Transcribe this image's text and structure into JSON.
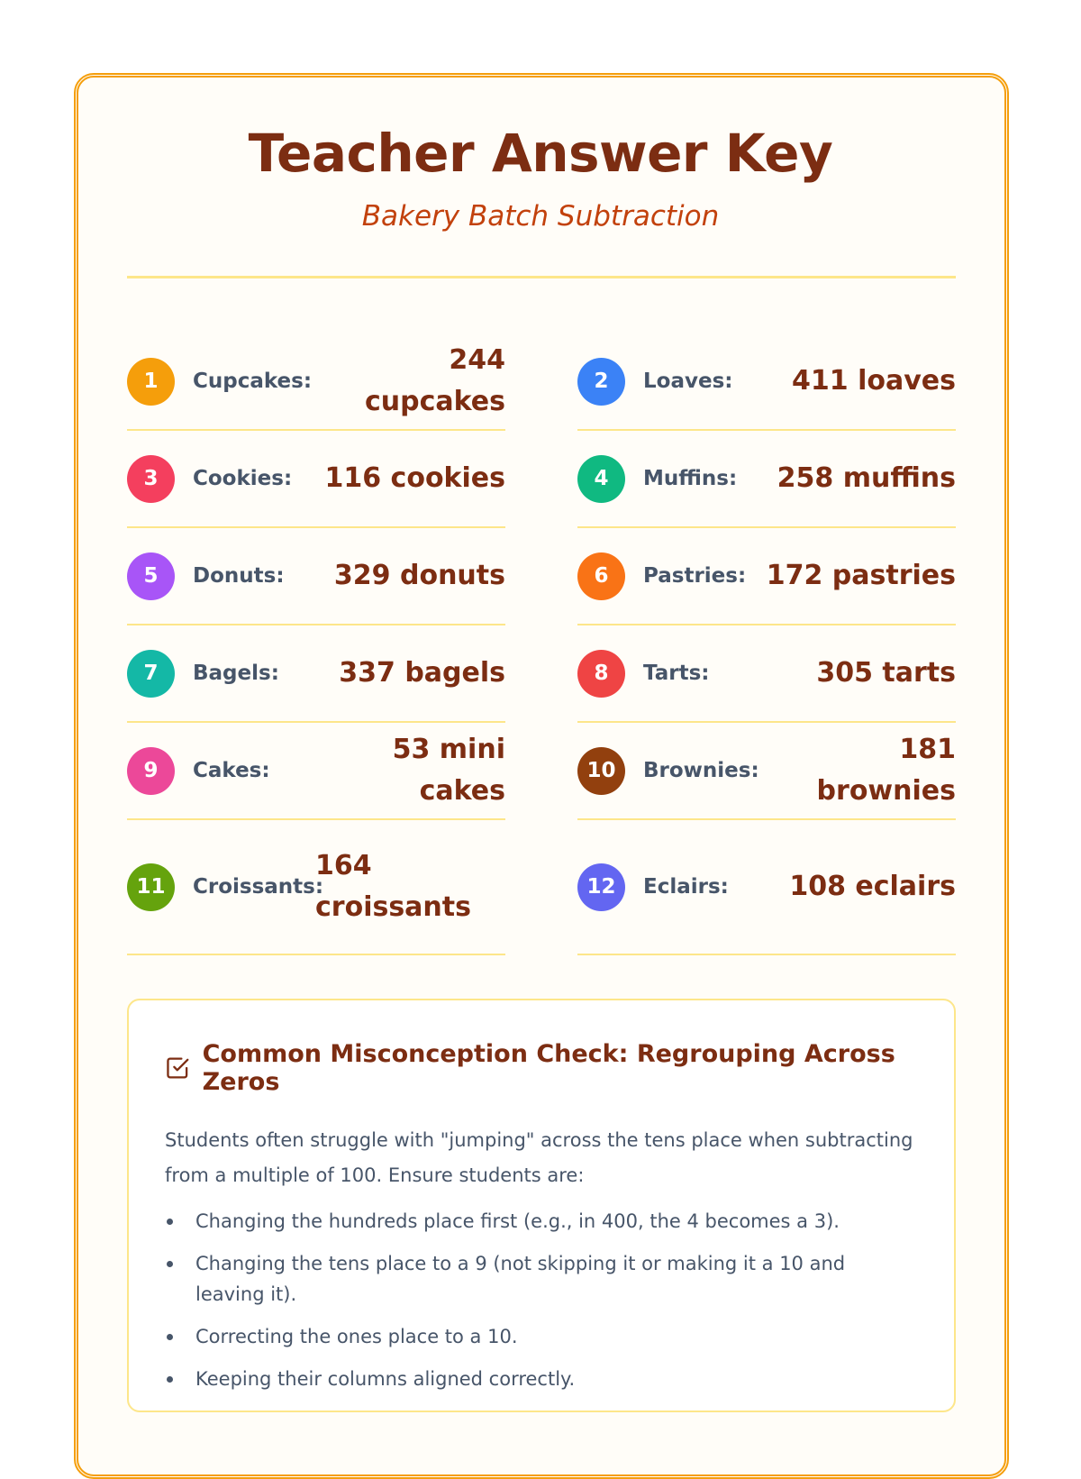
{
  "header": {
    "title": "Teacher Answer Key",
    "subtitle": "Bakery Batch Subtraction"
  },
  "answers": [
    {
      "n": "1",
      "label": "Cupcakes:",
      "answer": "244 cupcakes",
      "color": "#f59e0b"
    },
    {
      "n": "2",
      "label": "Loaves:",
      "answer": "411 loaves",
      "color": "#3b82f6"
    },
    {
      "n": "3",
      "label": "Cookies:",
      "answer": "116 cookies",
      "color": "#f43f5e"
    },
    {
      "n": "4",
      "label": "Muffins:",
      "answer": "258 muffins",
      "color": "#10b981"
    },
    {
      "n": "5",
      "label": "Donuts:",
      "answer": "329 donuts",
      "color": "#a855f7"
    },
    {
      "n": "6",
      "label": "Pastries:",
      "answer": "172 pastries",
      "color": "#f97316"
    },
    {
      "n": "7",
      "label": "Bagels:",
      "answer": "337 bagels",
      "color": "#14b8a6"
    },
    {
      "n": "8",
      "label": "Tarts:",
      "answer": "305 tarts",
      "color": "#ef4444"
    },
    {
      "n": "9",
      "label": "Cakes:",
      "answer": "53 mini cakes",
      "color": "#ec4899"
    },
    {
      "n": "10",
      "label": "Brownies:",
      "answer": "181 brownies",
      "color": "#92400e"
    },
    {
      "n": "11",
      "label": "Croissants:",
      "answer": "164 croissants",
      "color": "#65a30d"
    },
    {
      "n": "12",
      "label": "Eclairs:",
      "answer": "108 eclairs",
      "color": "#6366f1"
    }
  ],
  "note": {
    "icon": "checkbox-icon",
    "heading": "Common Misconception Check: Regrouping Across Zeros",
    "intro": "Students often struggle with \"jumping\" across the tens place when subtracting from a multiple of 100. Ensure students are:",
    "items": [
      "Changing the hundreds place first (e.g., in 400, the 4 becomes a 3).",
      "Changing the tens place to a 9 (not skipping it or making it a 10 and leaving it).",
      "Correcting the ones place to a 10.",
      "Keeping their columns aligned correctly."
    ]
  }
}
